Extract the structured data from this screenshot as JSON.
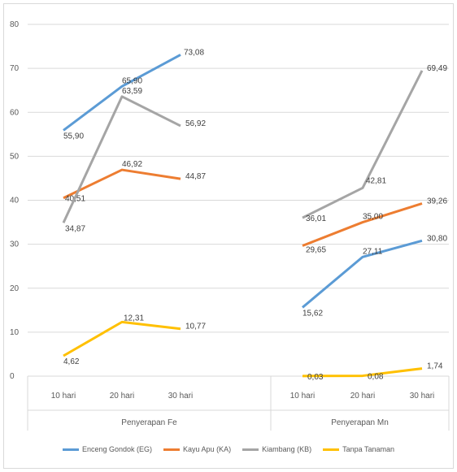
{
  "chart_data": {
    "type": "line",
    "ylim": [
      0,
      80
    ],
    "yticks": [
      "0",
      "10",
      "20",
      "30",
      "40",
      "50",
      "60",
      "70",
      "80"
    ],
    "groups": [
      {
        "label": "Penyerapan Fe",
        "categories": [
          "10 hari",
          "20 hari",
          "30 hari"
        ]
      },
      {
        "label": "Penyerapan Mn",
        "categories": [
          "10 hari",
          "20 hari",
          "30 hari"
        ]
      }
    ],
    "grid": true,
    "legend_position": "bottom",
    "series": [
      {
        "name": "Enceng Gondok (EG)",
        "color": "#5B9BD5",
        "fe": [
          55.9,
          65.9,
          73.08
        ],
        "mn": [
          15.62,
          27.11,
          30.8
        ],
        "fe_labels": [
          "55,90",
          "65,90",
          "73,08"
        ],
        "mn_labels": [
          "15,62",
          "27,11",
          "30,80"
        ]
      },
      {
        "name": "Kayu Apu (KA)",
        "color": "#ED7D31",
        "fe": [
          40.51,
          46.92,
          44.87
        ],
        "mn": [
          29.65,
          35.0,
          39.26
        ],
        "fe_labels": [
          "40,51",
          "46,92",
          "44,87"
        ],
        "mn_labels": [
          "29,65",
          "35,00",
          "39,26"
        ]
      },
      {
        "name": "Kiambang (KB)",
        "color": "#A5A5A5",
        "fe": [
          34.87,
          63.59,
          56.92
        ],
        "mn": [
          36.01,
          42.81,
          69.49
        ],
        "fe_labels": [
          "34,87",
          "63,59",
          "56,92"
        ],
        "mn_labels": [
          "36,01",
          "42,81",
          "69,49"
        ]
      },
      {
        "name": "Tanpa Tanaman",
        "color": "#FFC000",
        "fe": [
          4.62,
          12.31,
          10.77
        ],
        "mn": [
          0.03,
          0.08,
          1.74
        ],
        "fe_labels": [
          "4,62",
          "12,31",
          "10,77"
        ],
        "mn_labels": [
          "0,03",
          "0,08",
          "1,74"
        ]
      }
    ]
  }
}
